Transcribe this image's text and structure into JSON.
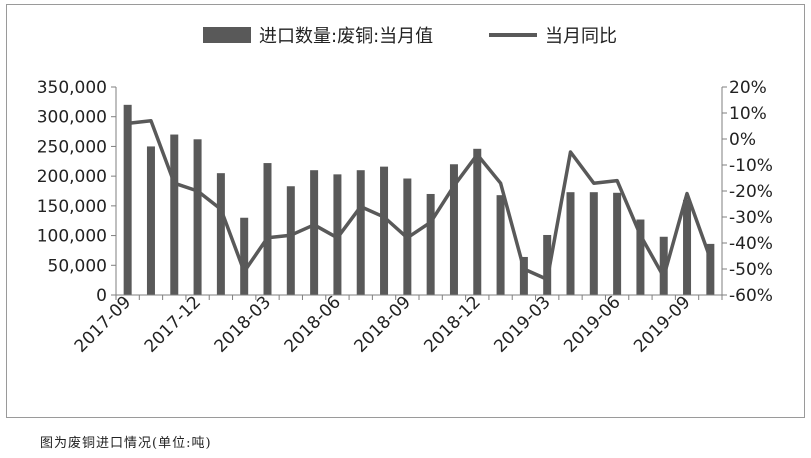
{
  "caption": "图为废铜进口情况(单位:吨)",
  "colors": {
    "bar": "#595959",
    "line": "#595959",
    "axis": "#7f7f7f"
  },
  "chart_data": {
    "type": "bar",
    "legend_position": "top",
    "grid": false,
    "months": [
      "2017-09",
      "2017-10",
      "2017-11",
      "2017-12",
      "2018-01",
      "2018-02",
      "2018-03",
      "2018-04",
      "2018-05",
      "2018-06",
      "2018-07",
      "2018-08",
      "2018-09",
      "2018-10",
      "2018-11",
      "2018-12",
      "2019-01",
      "2019-02",
      "2019-03",
      "2019-04",
      "2019-05",
      "2019-06",
      "2019-07",
      "2019-08",
      "2019-09",
      "2019-10"
    ],
    "x_tick_labels": [
      "2017-09",
      "2017-12",
      "2018-03",
      "2018-06",
      "2018-09",
      "2018-12",
      "2019-03",
      "2019-06",
      "2019-09"
    ],
    "x_tick_months": [
      "2017-09",
      "2017-12",
      "2018-03",
      "2018-06",
      "2018-09",
      "2018-12",
      "2019-03",
      "2019-06",
      "2019-09"
    ],
    "series": [
      {
        "name": "进口数量:废铜:当月值",
        "type": "bar",
        "axis": "left",
        "values": [
          320000,
          250000,
          270000,
          262000,
          205000,
          130000,
          222000,
          183000,
          210000,
          203000,
          210000,
          216000,
          196000,
          170000,
          220000,
          246000,
          168000,
          64000,
          101000,
          173000,
          173000,
          172000,
          127000,
          98000,
          160000,
          86000
        ]
      },
      {
        "name": "当月同比",
        "type": "line",
        "axis": "right",
        "values": [
          6,
          7,
          -17,
          -20,
          -27,
          -51,
          -38,
          -37,
          -33,
          -38,
          -26,
          -30,
          -38,
          -32,
          -18,
          -6,
          -17,
          -50,
          -54,
          -5,
          -17,
          -16,
          -37,
          -53,
          -21,
          -46
        ]
      }
    ],
    "y_left": {
      "min": 0,
      "max": 350000,
      "ticks": [
        "0",
        "50,000",
        "100,000",
        "150,000",
        "200,000",
        "250,000",
        "300,000",
        "350,000"
      ]
    },
    "y_right": {
      "min": -60,
      "max": 20,
      "ticks": [
        "-60%",
        "-50%",
        "-40%",
        "-30%",
        "-20%",
        "-10%",
        "0%",
        "10%",
        "20%"
      ]
    }
  }
}
